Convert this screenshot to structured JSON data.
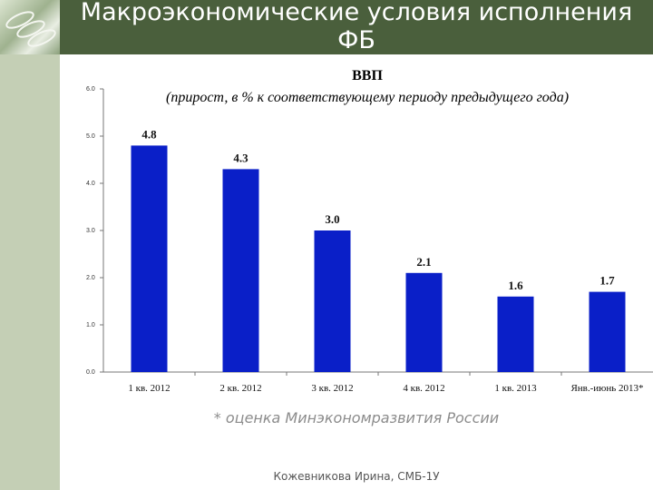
{
  "slide": {
    "title": "Макроэкономические условия исполнения\nФБ",
    "footnote": "* оценка Минэкономразвития России",
    "author": "Кожевникова Ирина, СМБ-1У"
  },
  "colors": {
    "header": "#4a5f3c",
    "stripe": "#c4cfb5",
    "bar": "#0a1fc8"
  },
  "icons": {
    "logo": "ring-binder-logo-icon"
  },
  "chart_data": {
    "type": "bar",
    "title": "ВВП",
    "subtitle": "(прирост, в % к соответствующему периоду предыдущего года)",
    "categories": [
      "1 кв. 2012",
      "2 кв. 2012",
      "3 кв. 2012",
      "4 кв. 2012",
      "1 кв. 2013",
      "Янв.-июнь 2013*"
    ],
    "values": [
      4.8,
      4.3,
      3.0,
      2.1,
      1.6,
      1.7
    ],
    "value_labels": [
      "4.8",
      "4.3",
      "3.0",
      "2.1",
      "1.6",
      "1.7"
    ],
    "ylim": [
      0,
      6
    ],
    "yticks": [
      "0.0",
      "1.0",
      "2.0",
      "3.0",
      "4.0",
      "5.0",
      "6.0"
    ],
    "grid": false,
    "legend": "none"
  }
}
